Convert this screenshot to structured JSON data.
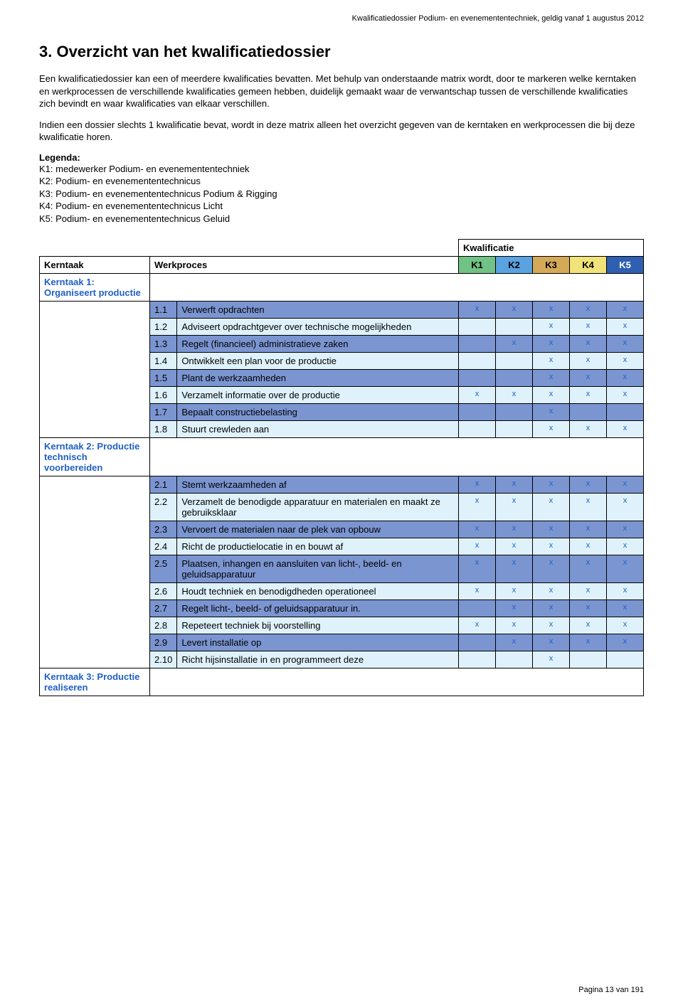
{
  "header": "Kwalificatiedossier Podium- en evenemententechniek, geldig vanaf 1 augustus 2012",
  "heading": "3. Overzicht van het kwalificatiedossier",
  "para1": "Een kwalificatiedossier kan een of meerdere kwalificaties bevatten. Met behulp van onderstaande matrix wordt, door te markeren welke kerntaken en werkprocessen de verschillende kwalificaties gemeen hebben, duidelijk gemaakt waar de verwantschap tussen de verschillende kwalificaties zich bevindt en waar kwalificaties van elkaar verschillen.",
  "para2": "Indien een dossier slechts 1 kwalificatie bevat, wordt in deze matrix alleen het overzicht gegeven van de kerntaken en werkprocessen die bij deze kwalificatie horen.",
  "legendaLabel": "Legenda:",
  "legenda": [
    "K1: medewerker Podium- en evenemententechniek",
    "K2: Podium- en evenemententechnicus",
    "K3: Podium- en evenemententechnicus Podium & Rigging",
    "K4: Podium- en evenemententechnicus Licht",
    "K5: Podium- en evenemententechnicus Geluid"
  ],
  "tableHeaders": {
    "kwalificatie": "Kwalificatie",
    "kerntaak": "Kerntaak",
    "werkproces": "Werkproces",
    "cols": [
      "K1",
      "K2",
      "K3",
      "K4",
      "K5"
    ]
  },
  "colColors": [
    "#71c285",
    "#5aa3e0",
    "#d4a958",
    "#f2e27a",
    "#2f5fb0"
  ],
  "rowColors": {
    "dark": "#7b95d1",
    "light": "#dff2fb"
  },
  "mark": "x",
  "sections": [
    {
      "title": "Kerntaak 1: Organiseert productie",
      "rows": [
        {
          "num": "1.1",
          "desc": "Verwerft opdrachten",
          "marks": [
            true,
            true,
            true,
            true,
            true
          ],
          "shade": "dark"
        },
        {
          "num": "1.2",
          "desc": "Adviseert opdrachtgever over technische mogelijkheden",
          "marks": [
            false,
            false,
            true,
            true,
            true
          ],
          "shade": "light"
        },
        {
          "num": "1.3",
          "desc": "Regelt (financieel) administratieve zaken",
          "marks": [
            false,
            true,
            true,
            true,
            true
          ],
          "shade": "dark"
        },
        {
          "num": "1.4",
          "desc": "Ontwikkelt een plan voor de productie",
          "marks": [
            false,
            false,
            true,
            true,
            true
          ],
          "shade": "light"
        },
        {
          "num": "1.5",
          "desc": "Plant de werkzaamheden",
          "marks": [
            false,
            false,
            true,
            true,
            true
          ],
          "shade": "dark"
        },
        {
          "num": "1.6",
          "desc": "Verzamelt informatie over de productie",
          "marks": [
            true,
            true,
            true,
            true,
            true
          ],
          "shade": "light"
        },
        {
          "num": "1.7",
          "desc": "Bepaalt constructiebelasting",
          "marks": [
            false,
            false,
            true,
            false,
            false
          ],
          "shade": "dark"
        },
        {
          "num": "1.8",
          "desc": "Stuurt crewleden aan",
          "marks": [
            false,
            false,
            true,
            true,
            true
          ],
          "shade": "light"
        }
      ]
    },
    {
      "title": "Kerntaak 2: Productie technisch voorbereiden",
      "rows": [
        {
          "num": "2.1",
          "desc": "Stemt werkzaamheden af",
          "marks": [
            true,
            true,
            true,
            true,
            true
          ],
          "shade": "dark"
        },
        {
          "num": "2.2",
          "desc": "Verzamelt de benodigde apparatuur en materialen en maakt ze gebruiksklaar",
          "marks": [
            true,
            true,
            true,
            true,
            true
          ],
          "shade": "light"
        },
        {
          "num": "2.3",
          "desc": "Vervoert de materialen naar de plek van opbouw",
          "marks": [
            true,
            true,
            true,
            true,
            true
          ],
          "shade": "dark"
        },
        {
          "num": "2.4",
          "desc": "Richt de productielocatie in en bouwt af",
          "marks": [
            true,
            true,
            true,
            true,
            true
          ],
          "shade": "light"
        },
        {
          "num": "2.5",
          "desc": "Plaatsen, inhangen en aansluiten van licht-, beeld- en geluidsapparatuur",
          "marks": [
            true,
            true,
            true,
            true,
            true
          ],
          "shade": "dark"
        },
        {
          "num": "2.6",
          "desc": "Houdt techniek en benodigdheden operationeel",
          "marks": [
            true,
            true,
            true,
            true,
            true
          ],
          "shade": "light"
        },
        {
          "num": "2.7",
          "desc": "Regelt licht-, beeld- of geluidsapparatuur in.",
          "marks": [
            false,
            true,
            true,
            true,
            true
          ],
          "shade": "dark"
        },
        {
          "num": "2.8",
          "desc": "Repeteert techniek bij voorstelling",
          "marks": [
            true,
            true,
            true,
            true,
            true
          ],
          "shade": "light"
        },
        {
          "num": "2.9",
          "desc": "Levert installatie op",
          "marks": [
            false,
            true,
            true,
            true,
            true
          ],
          "shade": "dark"
        },
        {
          "num": "2.10",
          "desc": "Richt hijsinstallatie in en programmeert deze",
          "marks": [
            false,
            false,
            true,
            false,
            false
          ],
          "shade": "light"
        }
      ]
    },
    {
      "title": "Kerntaak 3: Productie realiseren",
      "rows": []
    }
  ],
  "footer": "Pagina 13 van 191"
}
